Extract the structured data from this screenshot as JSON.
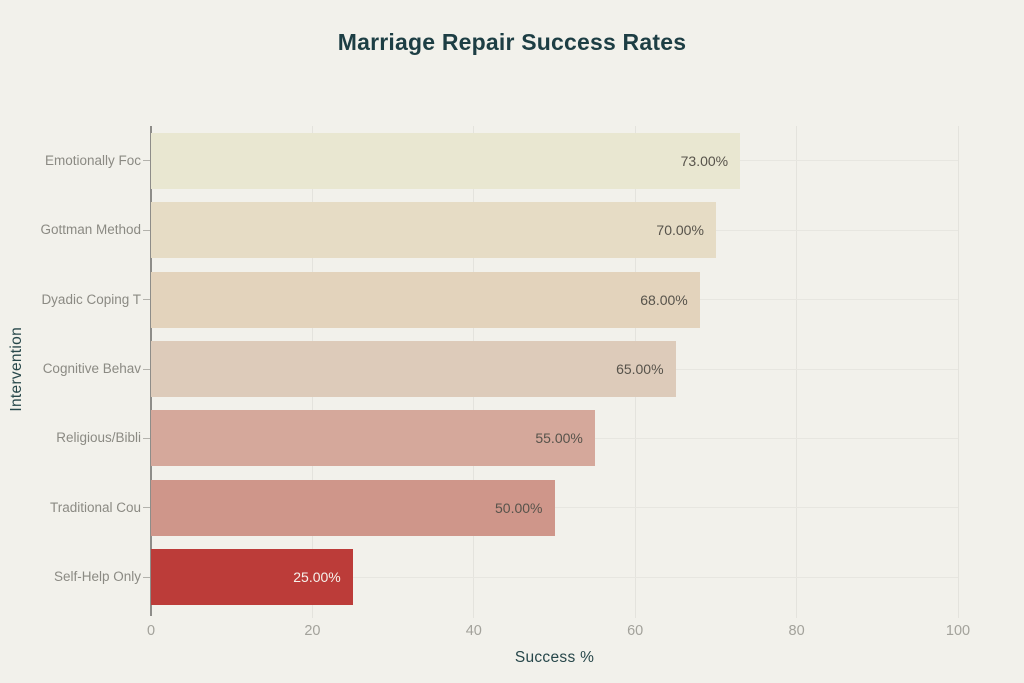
{
  "colors": {
    "background": "#f2f1eb",
    "title": "#1d3e44",
    "axis_title": "#27474a",
    "category_label": "#8b8a83",
    "tick_label": "#a3a29b",
    "gridline": "#e4e3dd",
    "axis_line": "#8e8d89"
  },
  "chart_data": {
    "type": "bar",
    "orientation": "horizontal",
    "title": "Marriage Repair Success Rates",
    "xlabel": "Success %",
    "ylabel": "Intervention",
    "xlim": [
      0,
      100
    ],
    "x_ticks": [
      0,
      20,
      40,
      60,
      80,
      100
    ],
    "grid": true,
    "legend": false,
    "categories": [
      "Emotionally Foc",
      "Gottman Method",
      "Dyadic Coping T",
      "Cognitive Behav",
      "Religious/Bibli",
      "Traditional Cou",
      "Self-Help Only"
    ],
    "values": [
      73,
      70,
      68,
      65,
      55,
      50,
      25
    ],
    "bars": [
      {
        "label": "Emotionally Foc",
        "value": 73,
        "value_label": "73.00%",
        "color": "#e9e7d1",
        "value_label_color": "#57534b"
      },
      {
        "label": "Gottman Method",
        "value": 70,
        "value_label": "70.00%",
        "color": "#e6dcc5",
        "value_label_color": "#57534b"
      },
      {
        "label": "Dyadic Coping T",
        "value": 68,
        "value_label": "68.00%",
        "color": "#e3d3bc",
        "value_label_color": "#57534b"
      },
      {
        "label": "Cognitive Behav",
        "value": 65,
        "value_label": "65.00%",
        "color": "#ddcbba",
        "value_label_color": "#57534b"
      },
      {
        "label": "Religious/Bibli",
        "value": 55,
        "value_label": "55.00%",
        "color": "#d5a89b",
        "value_label_color": "#57534b"
      },
      {
        "label": "Traditional Cou",
        "value": 50,
        "value_label": "50.00%",
        "color": "#cf968a",
        "value_label_color": "#57534b"
      },
      {
        "label": "Self-Help Only",
        "value": 25,
        "value_label": "25.00%",
        "color": "#bc3c39",
        "value_label_color": "#f6f2ec"
      }
    ]
  }
}
